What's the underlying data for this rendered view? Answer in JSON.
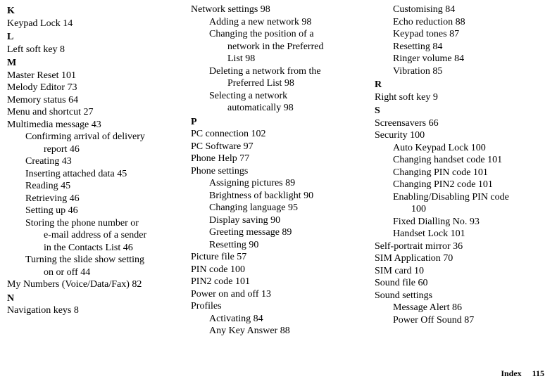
{
  "col1": {
    "K": {
      "letter": "K",
      "items": [
        "Keypad Lock 14"
      ]
    },
    "L": {
      "letter": "L",
      "items": [
        "Left soft key 8"
      ]
    },
    "M": {
      "letter": "M",
      "items": [
        "Master Reset 101",
        "Melody Editor 73",
        "Memory status 64",
        "Menu and shortcut 27",
        "Multimedia message 43"
      ],
      "subs": [
        {
          "l1": "Confirming arrival of delivery",
          "l2": "report 46"
        },
        {
          "l1": "Creating 43"
        },
        {
          "l1": "Inserting attached data 45"
        },
        {
          "l1": "Reading 45"
        },
        {
          "l1": "Retrieving 46"
        },
        {
          "l1": "Setting up 46"
        },
        {
          "l1": "Storing the phone number or",
          "l2": "e-mail address of a sender",
          "l3": "in the Contacts List 46"
        },
        {
          "l1": "Turning the slide show setting",
          "l2": "on or off 44"
        }
      ],
      "trailing": [
        "My Numbers (Voice/Data/Fax) 82"
      ]
    },
    "N": {
      "letter": "N",
      "items": [
        "Navigation keys 8"
      ]
    }
  },
  "col2": {
    "Network": {
      "head": "Network settings 98",
      "subs": [
        {
          "l1": "Adding a new network 98"
        },
        {
          "l1": "Changing the position of a",
          "l2": "network in the Preferred",
          "l3": "List 98"
        },
        {
          "l1": "Deleting a network from the",
          "l2": "Preferred List 98"
        },
        {
          "l1": "Selecting a network",
          "l2": "automatically 98"
        }
      ]
    },
    "P": {
      "letter": "P",
      "items": [
        "PC connection 102",
        "PC Software 97",
        "Phone Help 77",
        "Phone settings"
      ],
      "subs": [
        {
          "l1": "Assigning pictures 89"
        },
        {
          "l1": "Brightness of backlight 90"
        },
        {
          "l1": "Changing language 95"
        },
        {
          "l1": "Display saving 90"
        },
        {
          "l1": "Greeting message 89"
        },
        {
          "l1": "Resetting 90"
        }
      ],
      "more": [
        "Picture file 57",
        "PIN code 100",
        "PIN2 code 101",
        "Power on and off 13",
        "Profiles"
      ],
      "subs2": [
        {
          "l1": "Activating 84"
        },
        {
          "l1": "Any Key Answer 88"
        }
      ]
    }
  },
  "col3": {
    "ProfilesCont": [
      {
        "l1": "Customising 84"
      },
      {
        "l1": "Echo reduction 88"
      },
      {
        "l1": "Keypad tones 87"
      },
      {
        "l1": "Resetting 84"
      },
      {
        "l1": "Ringer volume 84"
      },
      {
        "l1": "Vibration 85"
      }
    ],
    "R": {
      "letter": "R",
      "items": [
        "Right soft key 9"
      ]
    },
    "S": {
      "letter": "S",
      "items": [
        "Screensavers 66",
        "Security 100"
      ],
      "subs": [
        {
          "l1": "Auto Keypad Lock 100"
        },
        {
          "l1": "Changing handset code 101"
        },
        {
          "l1": "Changing PIN code 101"
        },
        {
          "l1": "Changing PIN2 code 101"
        },
        {
          "l1": "Enabling/Disabling PIN code",
          "l2": "100"
        },
        {
          "l1": "Fixed Dialling No. 93"
        },
        {
          "l1": "Handset Lock 101"
        }
      ],
      "more": [
        "Self-portrait mirror 36",
        "SIM Application 70",
        "SIM card 10",
        "Sound file 60",
        "Sound settings"
      ],
      "subs2": [
        {
          "l1": "Message Alert 86"
        },
        {
          "l1": "Power Off Sound 87"
        }
      ]
    }
  },
  "footer": {
    "label": "Index",
    "page": "115"
  }
}
